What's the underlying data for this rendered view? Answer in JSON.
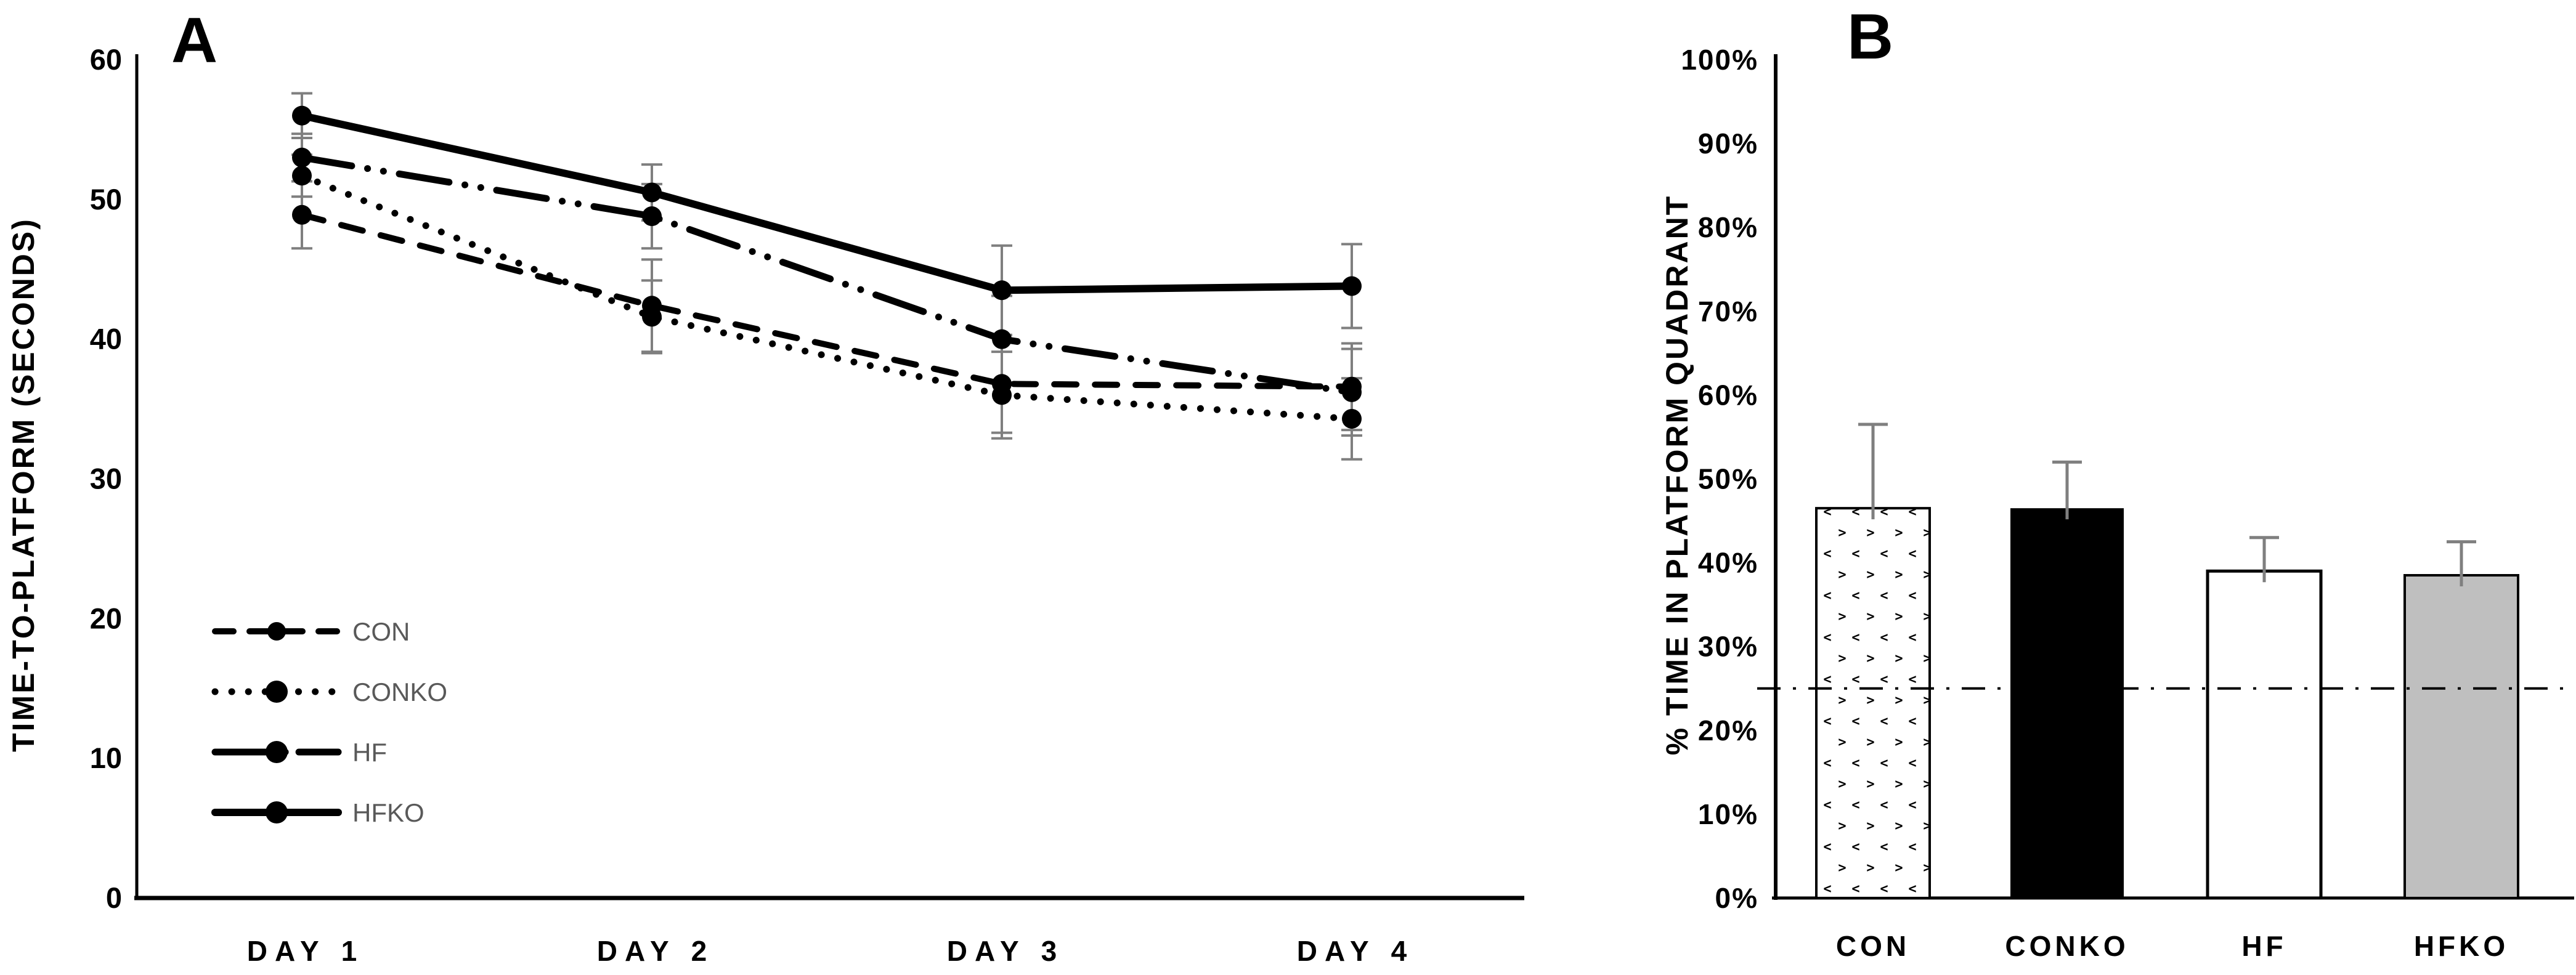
{
  "figure": {
    "panels": [
      "A",
      "B"
    ]
  },
  "colors": {
    "line_black": "#000000",
    "legend_text_gray": "#595959",
    "error_bar_gray": "#7f7f7f",
    "gray_bar_fill": "#bfbfbf",
    "white": "#ffffff"
  },
  "panel_a": {
    "label": "A",
    "y_axis_title": "TIME-TO-PLATFORM (SECONDS)"
  },
  "panel_b": {
    "label": "B",
    "y_axis_title": "% TIME IN PLATFORM QUADRANT"
  },
  "chart_data": [
    {
      "type": "line",
      "panel": "A",
      "title": "",
      "xlabel": "",
      "ylabel": "TIME-TO-PLATFORM (SECONDS)",
      "categories": [
        "DAY 1",
        "DAY 2",
        "DAY 3",
        "DAY 4"
      ],
      "ylim": [
        0,
        60
      ],
      "y_ticks": [
        0,
        10,
        20,
        30,
        40,
        50,
        60
      ],
      "grid": false,
      "legend_position": "inside-lower-left",
      "marker": "filled-circle",
      "series": [
        {
          "name": "CON",
          "line_style": "dashed",
          "values": [
            48.9,
            42.4,
            36.8,
            36.6
          ],
          "errors": [
            2.4,
            3.3,
            3.5,
            3.1
          ]
        },
        {
          "name": "CONKO",
          "line_style": "dotted",
          "values": [
            51.7,
            41.6,
            36.0,
            34.3
          ],
          "errors": [
            1.5,
            2.6,
            3.1,
            2.9
          ]
        },
        {
          "name": "HF",
          "line_style": "dash-dot-dot",
          "values": [
            53.0,
            48.8,
            40.0,
            36.2
          ],
          "errors": [
            1.7,
            2.3,
            3.1,
            3.1
          ]
        },
        {
          "name": "HFKO",
          "line_style": "solid",
          "values": [
            56.0,
            50.5,
            43.5,
            43.8
          ],
          "errors": [
            1.6,
            2.0,
            3.2,
            3.0
          ]
        }
      ]
    },
    {
      "type": "bar",
      "panel": "B",
      "title": "",
      "xlabel": "",
      "ylabel": "% TIME IN PLATFORM QUADRANT",
      "categories": [
        "CON",
        "CONKO",
        "HF",
        "HFKO"
      ],
      "values": [
        46.5,
        46.5,
        39.0,
        38.5
      ],
      "errors": [
        10.0,
        5.5,
        4.0,
        4.0
      ],
      "ylim": [
        0,
        100
      ],
      "y_ticks": [
        0,
        10,
        20,
        30,
        40,
        50,
        60,
        70,
        80,
        90,
        100
      ],
      "y_tick_format": "percent",
      "grid": false,
      "reference_line": {
        "value": 25,
        "style": "dash-dot"
      },
      "bar_fills": [
        "chevron-pattern",
        "black",
        "white",
        "gray"
      ]
    }
  ]
}
